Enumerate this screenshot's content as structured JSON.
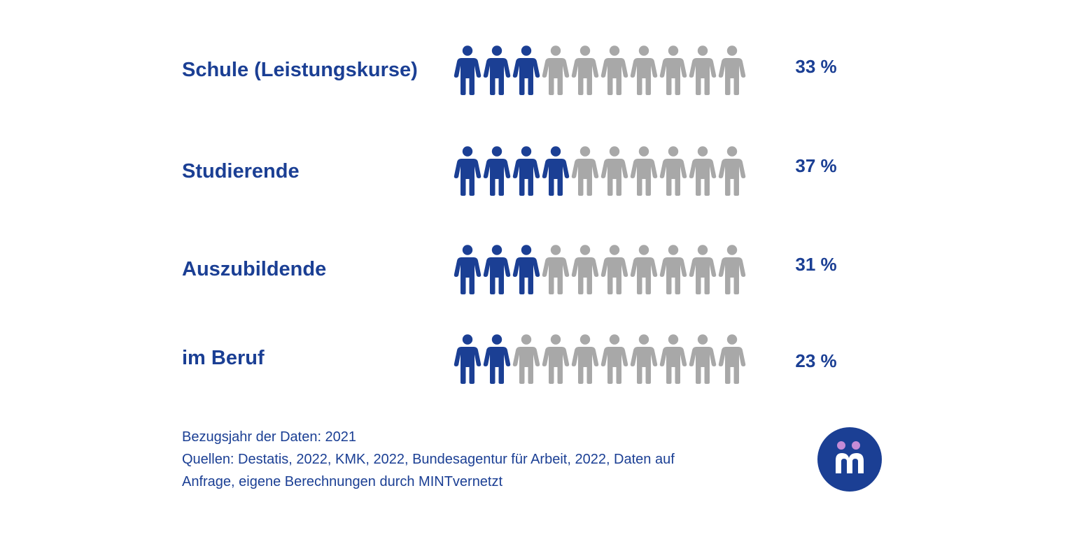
{
  "chart_data": {
    "type": "pictogram",
    "icons_per_row": 10,
    "categories": [
      "Schule (Leistungskurse)",
      "Studierende",
      "Auszubildende",
      "im Beruf"
    ],
    "values": [
      33,
      37,
      31,
      23
    ],
    "value_labels": [
      "33 %",
      "37 %",
      "31 %",
      "23 %"
    ],
    "highlighted_icons": [
      3,
      4,
      3,
      2
    ],
    "colors": {
      "highlight": "#1b3f94",
      "rest": "#a8a8a8"
    }
  },
  "footnote": {
    "line1": "Bezugsjahr der Daten: 2021",
    "line2": "Quellen: Destatis, 2022, KMK, 2022, Bundesagentur für Arbeit, 2022, Daten auf",
    "line3": "Anfrage, eigene Berechnungen durch MINTvernetzt"
  },
  "logo": {
    "icon": "mintvernetzt-logo-icon",
    "bg_color": "#1b3f94",
    "dot_color": "#c58bd6"
  }
}
